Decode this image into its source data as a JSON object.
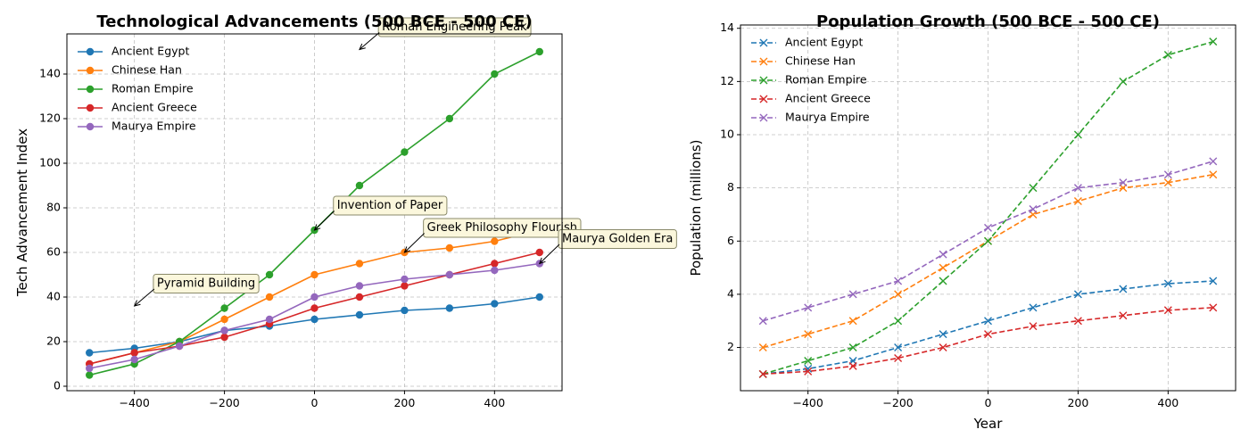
{
  "chart_data": [
    {
      "type": "line",
      "title": "Technological Advancements (500 BCE - 500 CE)",
      "xlabel": "",
      "ylabel": "Tech Advancement Index",
      "x": [
        -500,
        -400,
        -300,
        -200,
        -100,
        0,
        100,
        200,
        300,
        400,
        500
      ],
      "xlim": [
        -550,
        550
      ],
      "ylim": [
        -2,
        158
      ],
      "xticks": [
        -400,
        -200,
        0,
        200,
        400
      ],
      "xtick_labels": [
        "−400",
        "−200",
        "0",
        "200",
        "400"
      ],
      "yticks": [
        0,
        20,
        40,
        60,
        80,
        100,
        120,
        140
      ],
      "ytick_labels": [
        "0",
        "20",
        "40",
        "60",
        "80",
        "100",
        "120",
        "140"
      ],
      "grid": true,
      "legend": "top-left",
      "marker": "circle",
      "series": [
        {
          "name": "Ancient Egypt",
          "color": "#1f77b4",
          "values": [
            15,
            17,
            20,
            25,
            27,
            30,
            32,
            34,
            35,
            37,
            40
          ]
        },
        {
          "name": "Chinese Han",
          "color": "#ff7f0e",
          "values": [
            10,
            15,
            20,
            30,
            40,
            50,
            55,
            60,
            62,
            65,
            70
          ]
        },
        {
          "name": "Roman Empire",
          "color": "#2ca02c",
          "values": [
            5,
            10,
            20,
            35,
            50,
            70,
            90,
            105,
            120,
            140,
            150
          ]
        },
        {
          "name": "Ancient Greece",
          "color": "#d62728",
          "values": [
            10,
            15,
            18,
            22,
            28,
            35,
            40,
            45,
            50,
            55,
            60
          ]
        },
        {
          "name": "Maurya Empire",
          "color": "#9467bd",
          "values": [
            8,
            12,
            18,
            25,
            30,
            40,
            45,
            48,
            50,
            52,
            55
          ]
        }
      ],
      "annotations": [
        {
          "text": "Pyramid Building",
          "x": -400,
          "y": 36,
          "text_x": -350,
          "text_y": 46
        },
        {
          "text": "Invention of Paper",
          "x": 0,
          "y": 70,
          "text_x": 50,
          "text_y": 81
        },
        {
          "text": "Roman Engineering Peak",
          "x": 100,
          "y": 151,
          "text_x": 150,
          "text_y": 161
        },
        {
          "text": "Greek Philosophy Flourish",
          "x": 200,
          "y": 60,
          "text_x": 250,
          "text_y": 71
        },
        {
          "text": "Maurya Golden Era",
          "x": 500,
          "y": 55,
          "text_x": 550,
          "text_y": 66
        }
      ]
    },
    {
      "type": "line",
      "title": "Population Growth (500 BCE - 500 CE)",
      "xlabel": "Year",
      "ylabel": "Population (millions)",
      "x": [
        -500,
        -400,
        -300,
        -200,
        -100,
        0,
        100,
        200,
        300,
        400,
        500
      ],
      "xlim": [
        -550,
        550
      ],
      "ylim": [
        0.375,
        14.125
      ],
      "xticks": [
        -400,
        -200,
        0,
        200,
        400
      ],
      "xtick_labels": [
        "−400",
        "−200",
        "0",
        "200",
        "400"
      ],
      "yticks": [
        2,
        4,
        6,
        8,
        10,
        12,
        14
      ],
      "ytick_labels": [
        "2",
        "4",
        "6",
        "8",
        "10",
        "12",
        "14"
      ],
      "grid": true,
      "legend": "top-left",
      "marker": "x",
      "linestyle": "dashed",
      "series": [
        {
          "name": "Ancient Egypt",
          "color": "#1f77b4",
          "values": [
            1,
            1.2,
            1.5,
            2,
            2.5,
            3,
            3.5,
            4,
            4.2,
            4.4,
            4.5
          ]
        },
        {
          "name": "Chinese Han",
          "color": "#ff7f0e",
          "values": [
            2,
            2.5,
            3,
            4,
            5,
            6,
            7,
            7.5,
            8,
            8.2,
            8.5
          ]
        },
        {
          "name": "Roman Empire",
          "color": "#2ca02c",
          "values": [
            1,
            1.5,
            2,
            3,
            4.5,
            6,
            8,
            10,
            12,
            13,
            13.5
          ]
        },
        {
          "name": "Ancient Greece",
          "color": "#d62728",
          "values": [
            1,
            1.1,
            1.3,
            1.6,
            2,
            2.5,
            2.8,
            3,
            3.2,
            3.4,
            3.5
          ]
        },
        {
          "name": "Maurya Empire",
          "color": "#9467bd",
          "values": [
            3,
            3.5,
            4,
            4.5,
            5.5,
            6.5,
            7.2,
            8,
            8.2,
            8.5,
            9
          ]
        }
      ]
    }
  ]
}
